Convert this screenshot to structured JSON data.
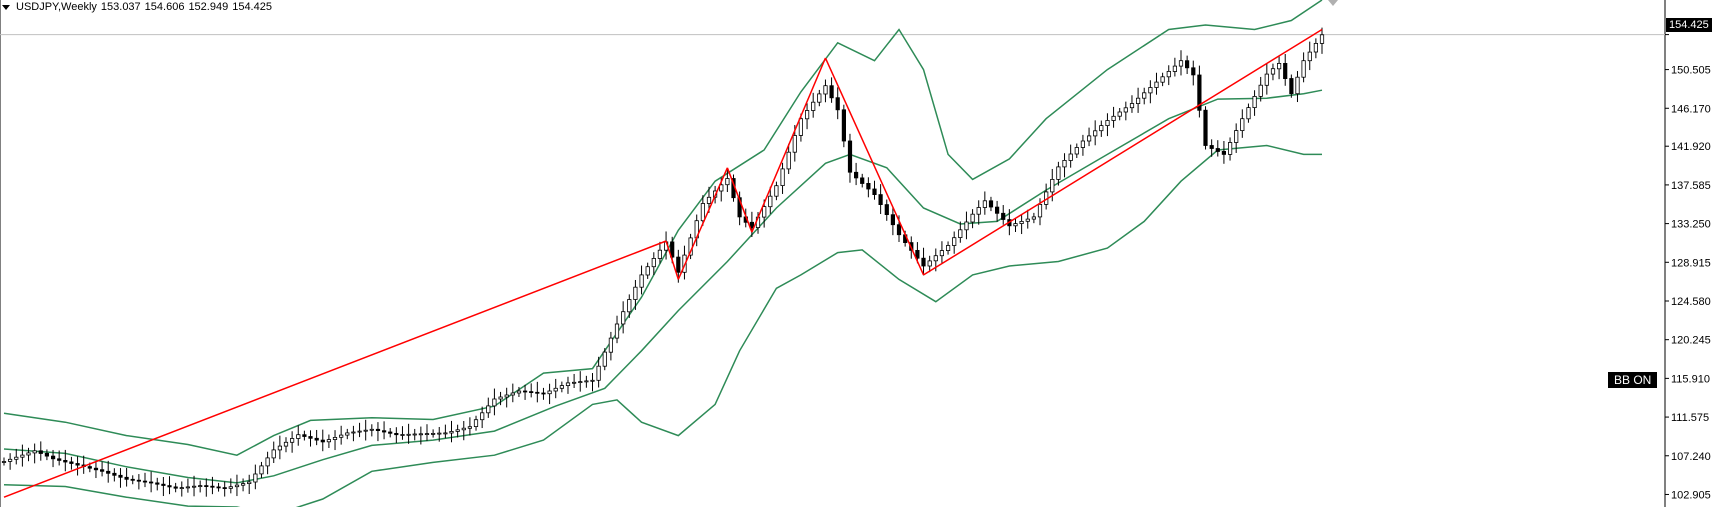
{
  "header": {
    "symbol": "USDJPY,Weekly",
    "open": "153.037",
    "high": "154.606",
    "low": "152.949",
    "close": "154.425"
  },
  "badge": "BB ON",
  "current_price_label": "154.425",
  "colors": {
    "bull": "#ffffff",
    "bear": "#000000",
    "candle_outline": "#000000",
    "bands": "#2e8b57",
    "pattern": "#ff0000",
    "axis": "#000000",
    "price_line": "#c0c0c0"
  },
  "chart_data": {
    "type": "candlestick",
    "title": "USDJPY,Weekly",
    "ylim": [
      101.5,
      158.3
    ],
    "y_ticks": [
      "154.425",
      "150.505",
      "146.170",
      "141.920",
      "137.585",
      "133.250",
      "128.915",
      "124.580",
      "120.245",
      "115.910",
      "111.575",
      "107.240",
      "102.905"
    ],
    "y_tick_values": [
      154.425,
      150.505,
      146.17,
      141.92,
      137.585,
      133.25,
      128.915,
      124.58,
      120.245,
      115.91,
      111.575,
      107.24,
      102.905
    ],
    "x_range": [
      0,
      215
    ],
    "close_series": [
      {
        "x": 0,
        "y": 106.6
      },
      {
        "x": 5,
        "y": 107.8
      },
      {
        "x": 8,
        "y": 106.9
      },
      {
        "x": 12,
        "y": 106.2
      },
      {
        "x": 16,
        "y": 105.5
      },
      {
        "x": 20,
        "y": 104.6
      },
      {
        "x": 24,
        "y": 104.2
      },
      {
        "x": 28,
        "y": 103.6
      },
      {
        "x": 32,
        "y": 103.9
      },
      {
        "x": 36,
        "y": 103.6
      },
      {
        "x": 40,
        "y": 104.3
      },
      {
        "x": 44,
        "y": 107.9
      },
      {
        "x": 48,
        "y": 109.6
      },
      {
        "x": 52,
        "y": 108.8
      },
      {
        "x": 56,
        "y": 109.8
      },
      {
        "x": 60,
        "y": 110.2
      },
      {
        "x": 64,
        "y": 109.6
      },
      {
        "x": 68,
        "y": 109.7
      },
      {
        "x": 72,
        "y": 109.8
      },
      {
        "x": 76,
        "y": 110.5
      },
      {
        "x": 80,
        "y": 113.6
      },
      {
        "x": 84,
        "y": 114.5
      },
      {
        "x": 88,
        "y": 114.2
      },
      {
        "x": 92,
        "y": 115.4
      },
      {
        "x": 96,
        "y": 115.7
      },
      {
        "x": 100,
        "y": 122.0
      },
      {
        "x": 104,
        "y": 127.5
      },
      {
        "x": 108,
        "y": 131.2
      },
      {
        "x": 110,
        "y": 127.8
      },
      {
        "x": 114,
        "y": 135.5
      },
      {
        "x": 118,
        "y": 138.3
      },
      {
        "x": 120,
        "y": 134.0
      },
      {
        "x": 122,
        "y": 132.8
      },
      {
        "x": 126,
        "y": 137.5
      },
      {
        "x": 130,
        "y": 145.0
      },
      {
        "x": 134,
        "y": 148.7
      },
      {
        "x": 136,
        "y": 146.0
      },
      {
        "x": 138,
        "y": 139.0
      },
      {
        "x": 142,
        "y": 136.5
      },
      {
        "x": 146,
        "y": 132.0
      },
      {
        "x": 150,
        "y": 128.5
      },
      {
        "x": 154,
        "y": 130.8
      },
      {
        "x": 158,
        "y": 134.3
      },
      {
        "x": 160,
        "y": 135.8
      },
      {
        "x": 164,
        "y": 133.0
      },
      {
        "x": 168,
        "y": 134.0
      },
      {
        "x": 172,
        "y": 139.6
      },
      {
        "x": 176,
        "y": 142.5
      },
      {
        "x": 180,
        "y": 144.8
      },
      {
        "x": 184,
        "y": 146.7
      },
      {
        "x": 188,
        "y": 149.1
      },
      {
        "x": 192,
        "y": 151.5
      },
      {
        "x": 194,
        "y": 149.9
      },
      {
        "x": 196,
        "y": 142.0
      },
      {
        "x": 199,
        "y": 141.0
      },
      {
        "x": 202,
        "y": 145.0
      },
      {
        "x": 206,
        "y": 150.0
      },
      {
        "x": 208,
        "y": 151.2
      },
      {
        "x": 210,
        "y": 147.8
      },
      {
        "x": 212,
        "y": 151.5
      },
      {
        "x": 215,
        "y": 154.4
      }
    ],
    "bollinger_upper": [
      {
        "x": 0,
        "y": 112.0
      },
      {
        "x": 10,
        "y": 111.0
      },
      {
        "x": 20,
        "y": 109.5
      },
      {
        "x": 30,
        "y": 108.5
      },
      {
        "x": 38,
        "y": 107.3
      },
      {
        "x": 44,
        "y": 109.5
      },
      {
        "x": 50,
        "y": 111.2
      },
      {
        "x": 60,
        "y": 111.5
      },
      {
        "x": 70,
        "y": 111.3
      },
      {
        "x": 80,
        "y": 112.8
      },
      {
        "x": 88,
        "y": 116.5
      },
      {
        "x": 96,
        "y": 117.0
      },
      {
        "x": 104,
        "y": 125.0
      },
      {
        "x": 110,
        "y": 132.5
      },
      {
        "x": 116,
        "y": 138.0
      },
      {
        "x": 124,
        "y": 141.5
      },
      {
        "x": 130,
        "y": 148.0
      },
      {
        "x": 136,
        "y": 153.5
      },
      {
        "x": 142,
        "y": 151.5
      },
      {
        "x": 146,
        "y": 155.0
      },
      {
        "x": 150,
        "y": 150.5
      },
      {
        "x": 154,
        "y": 141.0
      },
      {
        "x": 158,
        "y": 138.2
      },
      {
        "x": 164,
        "y": 140.5
      },
      {
        "x": 170,
        "y": 145.0
      },
      {
        "x": 180,
        "y": 150.5
      },
      {
        "x": 190,
        "y": 155.0
      },
      {
        "x": 196,
        "y": 155.5
      },
      {
        "x": 204,
        "y": 155.0
      },
      {
        "x": 210,
        "y": 156.0
      },
      {
        "x": 215,
        "y": 158.3
      }
    ],
    "bollinger_middle": [
      {
        "x": 0,
        "y": 108.0
      },
      {
        "x": 10,
        "y": 107.5
      },
      {
        "x": 20,
        "y": 106.0
      },
      {
        "x": 30,
        "y": 104.8
      },
      {
        "x": 38,
        "y": 104.2
      },
      {
        "x": 44,
        "y": 105.0
      },
      {
        "x": 52,
        "y": 106.8
      },
      {
        "x": 60,
        "y": 108.4
      },
      {
        "x": 70,
        "y": 109.0
      },
      {
        "x": 80,
        "y": 110.0
      },
      {
        "x": 90,
        "y": 112.8
      },
      {
        "x": 98,
        "y": 114.8
      },
      {
        "x": 104,
        "y": 119.0
      },
      {
        "x": 110,
        "y": 123.5
      },
      {
        "x": 118,
        "y": 129.0
      },
      {
        "x": 126,
        "y": 135.0
      },
      {
        "x": 134,
        "y": 140.0
      },
      {
        "x": 138,
        "y": 141.0
      },
      {
        "x": 144,
        "y": 139.5
      },
      {
        "x": 150,
        "y": 135.0
      },
      {
        "x": 156,
        "y": 133.2
      },
      {
        "x": 162,
        "y": 133.5
      },
      {
        "x": 170,
        "y": 137.0
      },
      {
        "x": 180,
        "y": 141.0
      },
      {
        "x": 190,
        "y": 145.0
      },
      {
        "x": 198,
        "y": 147.2
      },
      {
        "x": 206,
        "y": 147.3
      },
      {
        "x": 212,
        "y": 147.8
      },
      {
        "x": 215,
        "y": 148.2
      }
    ],
    "bollinger_lower": [
      {
        "x": 0,
        "y": 104.0
      },
      {
        "x": 10,
        "y": 103.8
      },
      {
        "x": 20,
        "y": 102.6
      },
      {
        "x": 30,
        "y": 101.6
      },
      {
        "x": 38,
        "y": 101.5
      },
      {
        "x": 44,
        "y": 100.6
      },
      {
        "x": 52,
        "y": 102.4
      },
      {
        "x": 60,
        "y": 105.5
      },
      {
        "x": 70,
        "y": 106.5
      },
      {
        "x": 80,
        "y": 107.3
      },
      {
        "x": 88,
        "y": 109.0
      },
      {
        "x": 96,
        "y": 113.0
      },
      {
        "x": 100,
        "y": 113.5
      },
      {
        "x": 104,
        "y": 111.0
      },
      {
        "x": 110,
        "y": 109.5
      },
      {
        "x": 116,
        "y": 113.0
      },
      {
        "x": 120,
        "y": 119.0
      },
      {
        "x": 126,
        "y": 126.0
      },
      {
        "x": 130,
        "y": 127.5
      },
      {
        "x": 136,
        "y": 130.0
      },
      {
        "x": 140,
        "y": 130.3
      },
      {
        "x": 146,
        "y": 127.0
      },
      {
        "x": 152,
        "y": 124.5
      },
      {
        "x": 158,
        "y": 127.5
      },
      {
        "x": 164,
        "y": 128.5
      },
      {
        "x": 172,
        "y": 129.0
      },
      {
        "x": 180,
        "y": 130.5
      },
      {
        "x": 186,
        "y": 133.5
      },
      {
        "x": 192,
        "y": 138.0
      },
      {
        "x": 198,
        "y": 141.5
      },
      {
        "x": 206,
        "y": 142.0
      },
      {
        "x": 212,
        "y": 141.0
      },
      {
        "x": 215,
        "y": 141.0
      }
    ],
    "pattern_lines": [
      {
        "x1": 0,
        "y1": 102.6,
        "x2": 108,
        "y2": 131.3
      },
      {
        "x1": 108,
        "y1": 131.3,
        "x2": 110,
        "y2": 127.0
      },
      {
        "x1": 110,
        "y1": 127.0,
        "x2": 118,
        "y2": 139.5
      },
      {
        "x1": 118,
        "y1": 139.5,
        "x2": 122,
        "y2": 132.3
      },
      {
        "x1": 122,
        "y1": 132.3,
        "x2": 134,
        "y2": 151.8
      },
      {
        "x1": 134,
        "y1": 151.8,
        "x2": 150,
        "y2": 127.5
      },
      {
        "x1": 150,
        "y1": 127.5,
        "x2": 215,
        "y2": 155.0
      }
    ]
  }
}
